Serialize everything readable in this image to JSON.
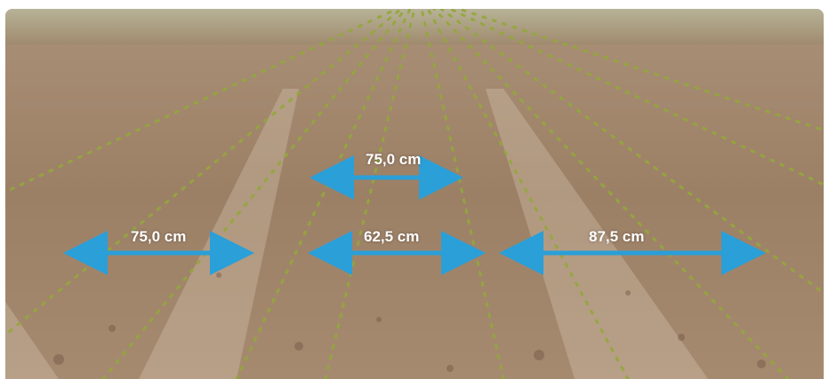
{
  "caption": "",
  "measurements": [
    {
      "label": "75,0 cm",
      "id": "top-center"
    },
    {
      "label": "75,0 cm",
      "id": "left"
    },
    {
      "label": "62,5 cm",
      "id": "center"
    },
    {
      "label": "87,5 cm",
      "id": "right"
    }
  ],
  "colors": {
    "arrow": "#2a9fd8",
    "soil": "#a2856c",
    "plant": "#9bb23a",
    "label_text": "#ffffff"
  }
}
